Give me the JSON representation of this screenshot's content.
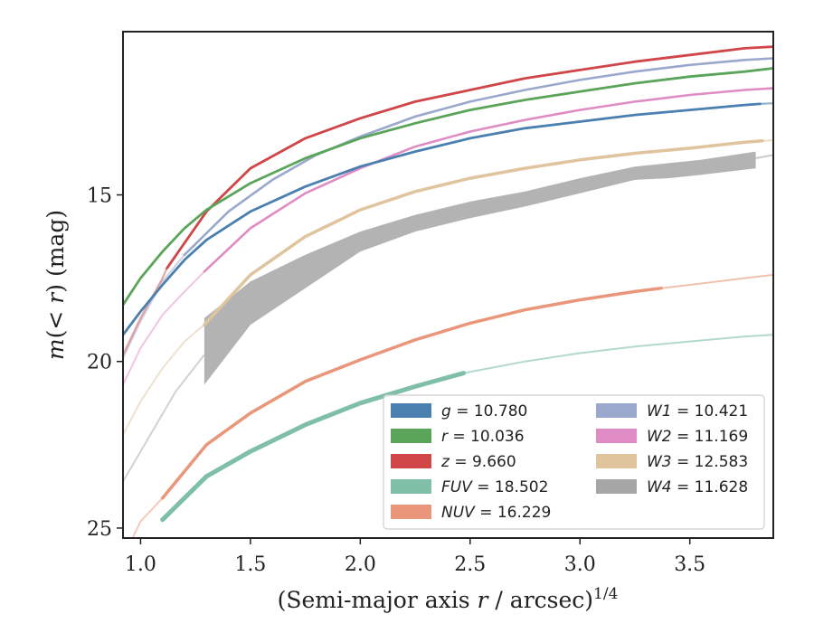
{
  "chart_data": {
    "type": "line",
    "title": "",
    "xlabel": "(Semi-major axis r / arcsec)^{1/4}",
    "ylabel": "m(< r) (mag)",
    "xlim": [
      0.92,
      3.88
    ],
    "ylim": [
      25.3,
      10.1
    ],
    "y_inverted": true,
    "x_ticks": [
      1.0,
      1.5,
      2.0,
      2.5,
      3.0,
      3.5
    ],
    "y_ticks": [
      15,
      20,
      25
    ],
    "grid": false,
    "legend_position": "lower-right",
    "series": [
      {
        "key": "W4",
        "name": "W4 = 11.628",
        "color": "#a6a6a6",
        "lw": 2.0,
        "x": [
          0.92,
          1.16,
          1.29
        ],
        "y": [
          23.6,
          20.9,
          19.8
        ],
        "band": {
          "x": [
            1.29,
            1.5,
            1.75,
            2.0,
            2.25,
            2.5,
            2.75,
            3.0,
            3.25,
            3.4,
            3.55,
            3.8
          ],
          "lo": [
            18.7,
            17.6,
            16.8,
            16.1,
            15.6,
            15.2,
            14.9,
            14.5,
            14.15,
            14.05,
            13.95,
            13.7
          ],
          "hi": [
            20.7,
            18.9,
            17.8,
            16.7,
            16.1,
            15.7,
            15.35,
            14.95,
            14.55,
            14.5,
            14.4,
            14.2
          ]
        },
        "x_tail": [
          3.8,
          3.88
        ],
        "y_tail": [
          13.9,
          13.8
        ]
      },
      {
        "key": "W3",
        "name": "W3 = 12.583",
        "color": "#e0c49e",
        "lw": 2.0,
        "x": [
          0.92,
          1.0,
          1.1,
          1.2,
          1.29
        ],
        "y": [
          22.2,
          21.2,
          20.2,
          19.4,
          18.9
        ],
        "x_main": [
          1.29,
          1.5,
          1.75,
          2.0,
          2.25,
          2.5,
          2.75,
          3.0,
          3.25,
          3.5,
          3.75,
          3.83
        ],
        "y_main": [
          18.9,
          17.4,
          16.25,
          15.45,
          14.9,
          14.5,
          14.2,
          13.95,
          13.75,
          13.6,
          13.42,
          13.38
        ],
        "x_tail": [
          3.83,
          3.88
        ],
        "y_tail": [
          13.38,
          13.36
        ]
      },
      {
        "key": "NUV",
        "name": "NUV = 16.229",
        "color": "#e9967a",
        "lw": 2.0,
        "x": [
          0.92,
          1.0,
          1.1
        ],
        "y": [
          25.9,
          24.8,
          24.1
        ],
        "x_main": [
          1.1,
          1.3,
          1.5,
          1.75,
          2.0,
          2.25,
          2.5,
          2.75,
          3.0,
          3.25,
          3.37
        ],
        "y_main": [
          24.1,
          22.5,
          21.55,
          20.6,
          19.95,
          19.35,
          18.85,
          18.45,
          18.15,
          17.9,
          17.8
        ],
        "x_tail": [
          3.37,
          3.5,
          3.75,
          3.88
        ],
        "y_tail": [
          17.8,
          17.7,
          17.5,
          17.4
        ]
      },
      {
        "key": "FUV",
        "name": "FUV = 18.502",
        "color": "#7fbfa8",
        "lw": 2.0,
        "x_main": [
          1.1,
          1.3,
          1.5,
          1.75,
          2.0,
          2.25,
          2.47
        ],
        "y_main": [
          24.75,
          23.45,
          22.7,
          21.9,
          21.25,
          20.75,
          20.35
        ],
        "x_tail": [
          2.47,
          2.75,
          3.0,
          3.25,
          3.5,
          3.75,
          3.88
        ],
        "y_tail": [
          20.35,
          20.0,
          19.75,
          19.55,
          19.4,
          19.25,
          19.2
        ]
      },
      {
        "key": "W2",
        "name": "W2 = 11.169",
        "color": "#e08cc4",
        "lw": 2.0,
        "x": [
          0.92,
          1.0,
          1.1,
          1.2,
          1.29
        ],
        "y": [
          20.7,
          19.6,
          18.6,
          17.9,
          17.3
        ],
        "x_main": [
          1.29,
          1.5,
          1.75,
          2.0,
          2.25,
          2.5,
          2.75,
          3.0,
          3.25,
          3.5,
          3.75,
          3.88
        ],
        "y_main": [
          17.3,
          16.0,
          14.95,
          14.2,
          13.55,
          13.1,
          12.75,
          12.45,
          12.2,
          12.0,
          11.85,
          11.8
        ]
      },
      {
        "key": "W1",
        "name": "W1 = 10.421",
        "color": "#99a8cc",
        "lw": 2.0,
        "x": [
          0.92,
          1.0,
          1.1,
          1.2
        ],
        "y": [
          19.9,
          18.8,
          17.6,
          16.8
        ],
        "x_main": [
          1.2,
          1.4,
          1.6,
          1.8,
          2.0,
          2.25,
          2.5,
          2.75,
          3.0,
          3.25,
          3.5,
          3.75,
          3.88
        ],
        "y_main": [
          16.8,
          15.5,
          14.55,
          13.8,
          13.25,
          12.65,
          12.2,
          11.85,
          11.55,
          11.3,
          11.1,
          10.95,
          10.9
        ]
      },
      {
        "key": "z",
        "name": "z = 9.660",
        "color": "#d04648",
        "lw": 2.2,
        "x": [
          0.92,
          1.0,
          1.1,
          1.12
        ],
        "y": [
          19.8,
          18.7,
          17.5,
          17.2
        ],
        "x_main": [
          1.12,
          1.3,
          1.5,
          1.75,
          2.0,
          2.25,
          2.5,
          2.75,
          3.0,
          3.25,
          3.5,
          3.75,
          3.88
        ],
        "y_main": [
          17.2,
          15.5,
          14.2,
          13.3,
          12.7,
          12.2,
          11.85,
          11.5,
          11.25,
          11.0,
          10.8,
          10.6,
          10.55
        ]
      },
      {
        "key": "g",
        "name": "g = 10.780",
        "color": "#4a80b0",
        "lw": 2.2,
        "x_main": [
          0.92,
          1.0,
          1.1,
          1.2,
          1.3,
          1.5,
          1.75,
          2.0,
          2.25,
          2.5,
          2.75,
          3.0,
          3.25,
          3.5,
          3.75,
          3.82
        ],
        "y_main": [
          19.2,
          18.5,
          17.7,
          16.95,
          16.35,
          15.5,
          14.75,
          14.15,
          13.7,
          13.3,
          13.0,
          12.8,
          12.6,
          12.45,
          12.3,
          12.27
        ],
        "x_tail": [
          3.82,
          3.88
        ],
        "y_tail": [
          12.27,
          12.25
        ]
      },
      {
        "key": "r",
        "name": "r = 10.036",
        "color": "#5aa55a",
        "lw": 2.2,
        "x_main": [
          0.92,
          1.0,
          1.1,
          1.2,
          1.3,
          1.5,
          1.75,
          2.0,
          2.25,
          2.5,
          2.75,
          3.0,
          3.25,
          3.5,
          3.75,
          3.88
        ],
        "y_main": [
          18.3,
          17.5,
          16.7,
          16.0,
          15.45,
          14.65,
          13.9,
          13.3,
          12.85,
          12.45,
          12.15,
          11.9,
          11.65,
          11.45,
          11.3,
          11.2
        ]
      }
    ],
    "legend": {
      "columns": [
        [
          {
            "label": "g = 10.780",
            "color": "#4a80b0"
          },
          {
            "label": "r = 10.036",
            "color": "#5aa55a"
          },
          {
            "label": "z = 9.660",
            "color": "#d04648"
          },
          {
            "label": "FUV = 18.502",
            "color": "#7fbfa8"
          },
          {
            "label": "NUV = 16.229",
            "color": "#e9967a"
          }
        ],
        [
          {
            "label": "W1 = 10.421",
            "color": "#99a8cc"
          },
          {
            "label": "W2 = 11.169",
            "color": "#e08cc4"
          },
          {
            "label": "W3 = 12.583",
            "color": "#e0c49e"
          },
          {
            "label": "W4 = 11.628",
            "color": "#a6a6a6"
          }
        ]
      ]
    }
  }
}
